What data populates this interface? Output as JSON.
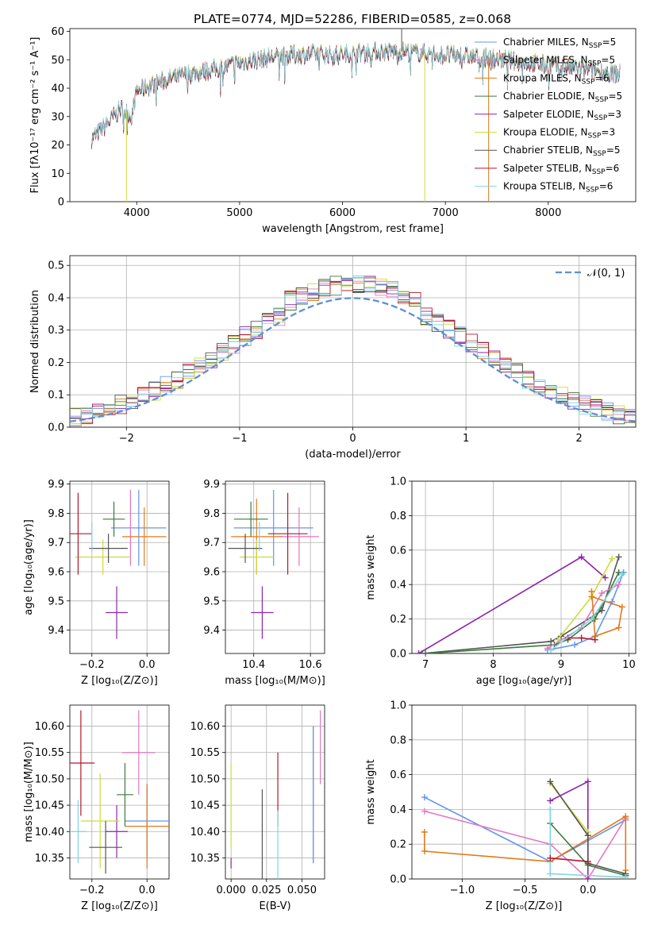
{
  "title": "PLATE=0774, MJD=52286, FIBERID=0585, z=0.068",
  "colors": {
    "chab_miles": "#6495ed",
    "salp_miles": "#e377c2",
    "krou_miles": "#e07b1a",
    "chab_elodie": "#3c7a3c",
    "salp_elodie": "#8e24aa",
    "krou_elodie": "#cddc39",
    "chab_stelib": "#555555",
    "salp_stelib": "#b2182b",
    "krou_stelib": "#80d4e0"
  },
  "legend": [
    {
      "key": "chab_miles",
      "prefix": "Chabrier MILES, N",
      "sub": "SSP",
      "suffix": "=5"
    },
    {
      "key": "salp_miles",
      "prefix": "Salpeter MILES, N",
      "sub": "SSP",
      "suffix": "=5"
    },
    {
      "key": "krou_miles",
      "prefix": "Kroupa MILES, N",
      "sub": "SSP",
      "suffix": "=6"
    },
    {
      "key": "chab_elodie",
      "prefix": "Chabrier ELODIE, N",
      "sub": "SSP",
      "suffix": "=5"
    },
    {
      "key": "salp_elodie",
      "prefix": "Salpeter ELODIE, N",
      "sub": "SSP",
      "suffix": "=3"
    },
    {
      "key": "krou_elodie",
      "prefix": "Kroupa ELODIE, N",
      "sub": "SSP",
      "suffix": "=3"
    },
    {
      "key": "chab_stelib",
      "prefix": "Chabrier STELIB, N",
      "sub": "SSP",
      "suffix": "=5"
    },
    {
      "key": "salp_stelib",
      "prefix": "Salpeter STELIB, N",
      "sub": "SSP",
      "suffix": "=6"
    },
    {
      "key": "krou_stelib",
      "prefix": "Kroupa STELIB, N",
      "sub": "SSP",
      "suffix": "=6"
    }
  ],
  "chart_data": [
    {
      "id": "spectrum",
      "type": "line",
      "xlabel": "wavelength [Angstrom, rest frame]",
      "ylabel": "Flux [fλ10⁻¹⁷ erg cm⁻² s⁻¹ A⁻¹]",
      "xlim": [
        3350,
        8850
      ],
      "ylim": [
        0,
        61
      ],
      "xticks": [
        4000,
        5000,
        6000,
        7000,
        8000
      ],
      "yticks": [
        0,
        10,
        20,
        30,
        40,
        50,
        60
      ],
      "continuum": [
        [
          3560,
          22
        ],
        [
          3700,
          27
        ],
        [
          3850,
          33
        ],
        [
          3950,
          30
        ],
        [
          4000,
          39
        ],
        [
          4200,
          42
        ],
        [
          4500,
          45
        ],
        [
          4800,
          47
        ],
        [
          5000,
          49
        ],
        [
          5300,
          51
        ],
        [
          5600,
          52
        ],
        [
          6000,
          52
        ],
        [
          6300,
          53
        ],
        [
          6600,
          53
        ],
        [
          6900,
          52
        ],
        [
          7300,
          51
        ],
        [
          7600,
          50
        ],
        [
          7800,
          49
        ],
        [
          8000,
          48
        ],
        [
          8300,
          47
        ],
        [
          8500,
          46
        ],
        [
          8700,
          45
        ]
      ],
      "spikes": [
        {
          "x": 3900,
          "y": 0,
          "key": "krou_elodie"
        },
        {
          "x": 6800,
          "y": 0,
          "key": "krou_elodie"
        },
        {
          "x": 7420,
          "y": 0,
          "key": "krou_miles"
        },
        {
          "x": 6575,
          "y": 61,
          "key": "chab_stelib"
        }
      ]
    },
    {
      "id": "histogram",
      "type": "step",
      "xlabel": "(data-model)/error",
      "ylabel": "Normed distribution",
      "xlim": [
        -2.5,
        2.5
      ],
      "ylim": [
        0,
        0.53
      ],
      "xticks": [
        -2,
        -1,
        0,
        1,
        2
      ],
      "yticks": [
        0,
        0.1,
        0.2,
        0.3,
        0.4,
        0.5
      ],
      "gaussian_label": "𝒩(0, 1)"
    },
    {
      "id": "age_vs_Z",
      "type": "errorbar",
      "xlabel": "Z [log₁₀(Z/Z⊙)]",
      "ylabel": "age  [log₁₀(age/yr)]",
      "xlim": [
        -0.28,
        0.08
      ],
      "ylim": [
        9.32,
        9.91
      ],
      "xticks": [
        -0.2,
        0.0
      ],
      "yticks": [
        9.4,
        9.5,
        9.6,
        9.7,
        9.8,
        9.9
      ],
      "points": [
        {
          "key": "chab_miles",
          "x": -0.03,
          "xerr": 0.1,
          "y": 9.75,
          "yerr": 0.13
        },
        {
          "key": "salp_miles",
          "x": -0.06,
          "xerr": 0.0,
          "y": 9.75,
          "yerr": 0.13
        },
        {
          "key": "krou_miles",
          "x": -0.01,
          "xerr": 0.08,
          "y": 9.72,
          "yerr": 0.1
        },
        {
          "key": "chab_elodie",
          "x": -0.12,
          "xerr": 0.04,
          "y": 9.78,
          "yerr": 0.06
        },
        {
          "key": "salp_elodie",
          "x": -0.11,
          "xerr": 0.04,
          "y": 9.46,
          "yerr": 0.09
        },
        {
          "key": "krou_elodie",
          "x": -0.16,
          "xerr": 0.1,
          "y": 9.65,
          "yerr": 0.06
        },
        {
          "key": "chab_stelib",
          "x": -0.14,
          "xerr": 0.07,
          "y": 9.68,
          "yerr": 0.05
        },
        {
          "key": "salp_stelib",
          "x": -0.25,
          "xerr": 0.05,
          "y": 9.73,
          "yerr": 0.14
        },
        {
          "key": "krou_stelib",
          "x": -0.2,
          "xerr": 0.0,
          "y": 9.72,
          "yerr": 0.05
        }
      ]
    },
    {
      "id": "age_vs_mass",
      "type": "errorbar",
      "xlabel": "mass [log₁₀(M/M⊙)]",
      "ylabel": "",
      "xlim": [
        10.3,
        10.65
      ],
      "ylim": [
        9.32,
        9.91
      ],
      "xticks": [
        10.4,
        10.6
      ],
      "yticks": [
        9.4,
        9.5,
        9.6,
        9.7,
        9.8,
        9.9
      ],
      "points": [
        {
          "key": "chab_miles",
          "x": 10.47,
          "xerr": 0.14,
          "y": 9.75,
          "yerr": 0.13
        },
        {
          "key": "salp_miles",
          "x": 10.56,
          "xerr": 0.07,
          "y": 9.72,
          "yerr": 0.1
        },
        {
          "key": "krou_miles",
          "x": 10.41,
          "xerr": 0.09,
          "y": 9.72,
          "yerr": 0.13
        },
        {
          "key": "chab_elodie",
          "x": 10.39,
          "xerr": 0.06,
          "y": 9.78,
          "yerr": 0.06
        },
        {
          "key": "salp_elodie",
          "x": 10.43,
          "xerr": 0.04,
          "y": 9.46,
          "yerr": 0.09
        },
        {
          "key": "krou_elodie",
          "x": 10.41,
          "xerr": 0.06,
          "y": 9.65,
          "yerr": 0.06
        },
        {
          "key": "chab_stelib",
          "x": 10.37,
          "xerr": 0.06,
          "y": 9.68,
          "yerr": 0.05
        },
        {
          "key": "salp_stelib",
          "x": 10.52,
          "xerr": 0.07,
          "y": 9.73,
          "yerr": 0.14
        },
        {
          "key": "krou_stelib",
          "x": 10.42,
          "xerr": 0.0,
          "y": 9.72,
          "yerr": 0.05
        }
      ]
    },
    {
      "id": "weight_vs_age",
      "type": "line",
      "xlabel": "age  [log₁₀(age/yr)]",
      "ylabel": "mass weight",
      "xlim": [
        6.8,
        10.1
      ],
      "ylim": [
        0,
        1
      ],
      "xticks": [
        7,
        8,
        9,
        10
      ],
      "yticks": [
        0,
        0.2,
        0.4,
        0.6,
        0.8,
        1.0
      ],
      "series": [
        {
          "key": "salp_elodie",
          "points": [
            [
              6.9,
              0
            ],
            [
              9.3,
              0.56
            ],
            [
              9.65,
              0.44
            ]
          ]
        },
        {
          "key": "chab_stelib",
          "points": [
            [
              6.95,
              0
            ],
            [
              8.85,
              0.07
            ],
            [
              9.0,
              0.1
            ],
            [
              9.6,
              0.25
            ],
            [
              9.85,
              0.56
            ]
          ]
        },
        {
          "key": "chab_elodie",
          "points": [
            [
              7.0,
              0
            ],
            [
              8.9,
              0.05
            ],
            [
              9.1,
              0.08
            ],
            [
              9.5,
              0.2
            ],
            [
              9.85,
              0.47
            ]
          ]
        },
        {
          "key": "krou_elodie",
          "points": [
            [
              8.95,
              0.08
            ],
            [
              9.45,
              0.33
            ],
            [
              9.75,
              0.55
            ]
          ]
        },
        {
          "key": "chab_miles",
          "points": [
            [
              8.8,
              0.02
            ],
            [
              9.2,
              0.05
            ],
            [
              9.5,
              0.1
            ],
            [
              9.75,
              0.3
            ],
            [
              9.92,
              0.47
            ]
          ]
        },
        {
          "key": "salp_miles",
          "points": [
            [
              8.8,
              0.03
            ],
            [
              9.3,
              0.15
            ],
            [
              9.6,
              0.35
            ],
            [
              9.85,
              0.4
            ]
          ]
        },
        {
          "key": "krou_miles",
          "points": [
            [
              9.45,
              0.36
            ],
            [
              9.5,
              0.1
            ],
            [
              9.85,
              0.15
            ],
            [
              9.9,
              0.27
            ],
            [
              9.45,
              0.33
            ]
          ]
        },
        {
          "key": "salp_stelib",
          "points": [
            [
              9.1,
              0.09
            ],
            [
              9.3,
              0.09
            ],
            [
              9.5,
              0.08
            ]
          ]
        },
        {
          "key": "krou_stelib",
          "points": [
            [
              8.85,
              0.02
            ],
            [
              9.45,
              0.2
            ],
            [
              9.9,
              0.46
            ]
          ]
        }
      ]
    },
    {
      "id": "mass_vs_Z",
      "type": "errorbar",
      "xlabel": "Z [log₁₀(Z/Z⊙)]",
      "ylabel": "mass [log₁₀(M/M⊙)]",
      "xlim": [
        -0.28,
        0.08
      ],
      "ylim": [
        10.31,
        10.64
      ],
      "xticks": [
        -0.2,
        0.0
      ],
      "yticks": [
        10.35,
        10.4,
        10.45,
        10.5,
        10.55,
        10.6
      ],
      "points": [
        {
          "key": "chab_miles",
          "x": 0.0,
          "xerr": 0.08,
          "y": 10.42,
          "yerr": 0.07
        },
        {
          "key": "salp_miles",
          "x": -0.03,
          "xerr": 0.06,
          "y": 10.55,
          "yerr": 0.08
        },
        {
          "key": "krou_miles",
          "x": 0.0,
          "xerr": 0.08,
          "y": 10.41,
          "yerr": 0.08
        },
        {
          "key": "chab_elodie",
          "x": -0.08,
          "xerr": 0.03,
          "y": 10.47,
          "yerr": 0.06
        },
        {
          "key": "salp_elodie",
          "x": -0.11,
          "xerr": 0.04,
          "y": 10.4,
          "yerr": 0.05
        },
        {
          "key": "krou_elodie",
          "x": -0.17,
          "xerr": 0.07,
          "y": 10.42,
          "yerr": 0.09
        },
        {
          "key": "chab_stelib",
          "x": -0.15,
          "xerr": 0.06,
          "y": 10.37,
          "yerr": 0.05
        },
        {
          "key": "salp_stelib",
          "x": -0.24,
          "xerr": 0.05,
          "y": 10.53,
          "yerr": 0.1
        },
        {
          "key": "krou_stelib",
          "x": -0.25,
          "xerr": 0.03,
          "y": 10.4,
          "yerr": 0.06
        }
      ]
    },
    {
      "id": "mass_vs_ebv",
      "type": "errorbar",
      "xlabel": "E(B-V)",
      "ylabel": "",
      "xlim": [
        -0.004,
        0.066
      ],
      "ylim": [
        10.31,
        10.64
      ],
      "xticks": [
        0.0,
        0.025,
        0.05
      ],
      "xticklabels": [
        "0.000",
        "0.025",
        "0.050"
      ],
      "yticks": [
        10.35,
        10.4,
        10.45,
        10.5,
        10.55,
        10.6
      ],
      "points": [
        {
          "key": "krou_elodie",
          "x": 0.0,
          "xerr": 0,
          "y": 10.45,
          "yerr": 0.08
        },
        {
          "key": "salp_elodie",
          "x": 0.0,
          "xerr": 0,
          "y": 10.34,
          "yerr": 0.01
        },
        {
          "key": "chab_stelib",
          "x": 0.022,
          "xerr": 0,
          "y": 10.38,
          "yerr": 0.1
        },
        {
          "key": "salp_stelib",
          "x": 0.033,
          "xerr": 0,
          "y": 10.48,
          "yerr": 0.07
        },
        {
          "key": "krou_stelib",
          "x": 0.033,
          "xerr": 0,
          "y": 10.37,
          "yerr": 0.07
        },
        {
          "key": "krou_miles",
          "x": 0.058,
          "xerr": 0,
          "y": 10.47,
          "yerr": 0.13
        },
        {
          "key": "chab_miles",
          "x": 0.058,
          "xerr": 0,
          "y": 10.47,
          "yerr": 0.13
        },
        {
          "key": "salp_miles",
          "x": 0.063,
          "xerr": 0,
          "y": 10.56,
          "yerr": 0.07
        }
      ]
    },
    {
      "id": "weight_vs_Z",
      "type": "line",
      "xlabel": "Z [log₁₀(Z/Z⊙)]",
      "ylabel": "mass weight",
      "xlim": [
        -1.4,
        0.38
      ],
      "ylim": [
        0,
        1
      ],
      "xticks": [
        -1.0,
        -0.5,
        0.0
      ],
      "yticks": [
        0,
        0.2,
        0.4,
        0.6,
        0.8,
        1.0
      ],
      "series": [
        {
          "key": "chab_miles",
          "points": [
            [
              -1.3,
              0.47
            ],
            [
              -0.3,
              0.1
            ],
            [
              0.3,
              0.34
            ]
          ]
        },
        {
          "key": "salp_miles",
          "points": [
            [
              -1.3,
              0.39
            ],
            [
              -0.3,
              0.2
            ],
            [
              0.0,
              0.0
            ],
            [
              0.3,
              0.35
            ]
          ]
        },
        {
          "key": "krou_miles",
          "points": [
            [
              -1.3,
              0.27
            ],
            [
              -1.3,
              0.16
            ],
            [
              -0.3,
              0.1
            ],
            [
              0.3,
              0.36
            ],
            [
              0.3,
              0.05
            ]
          ]
        },
        {
          "key": "salp_elodie",
          "points": [
            [
              -0.3,
              0.45
            ],
            [
              0.0,
              0.56
            ],
            [
              0.0,
              0.0
            ]
          ]
        },
        {
          "key": "krou_elodie",
          "points": [
            [
              -0.3,
              0.55
            ],
            [
              0.0,
              0.27
            ]
          ]
        },
        {
          "key": "chab_elodie",
          "points": [
            [
              -0.3,
              0.32
            ],
            [
              0.0,
              0.08
            ],
            [
              0.3,
              0.02
            ]
          ]
        },
        {
          "key": "chab_stelib",
          "points": [
            [
              -0.3,
              0.56
            ],
            [
              0.0,
              0.25
            ],
            [
              0.0,
              0.09
            ],
            [
              0.3,
              0.03
            ]
          ]
        },
        {
          "key": "krou_stelib",
          "points": [
            [
              -0.3,
              0.4
            ],
            [
              -0.3,
              0.03
            ],
            [
              0.3,
              0.01
            ]
          ]
        },
        {
          "key": "salp_stelib",
          "points": [
            [
              -0.3,
              0.12
            ],
            [
              0.0,
              0.1
            ]
          ]
        }
      ]
    }
  ]
}
